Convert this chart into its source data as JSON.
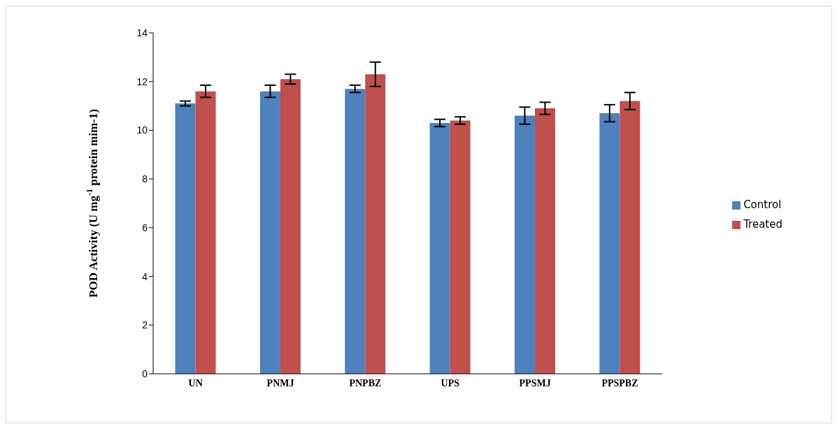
{
  "chart_data": {
    "type": "bar",
    "ylabel": "POD Activity (U mg$^{-1}$ protein mim-1)",
    "categories": [
      "UN",
      "PNMJ",
      "PNPBZ",
      "UPS",
      "PPSMJ",
      "PPSPBZ"
    ],
    "series": [
      {
        "name": "Control",
        "color": "#4f81bd",
        "values": [
          11.1,
          11.6,
          11.7,
          10.3,
          10.6,
          10.7
        ],
        "errors": [
          0.1,
          0.25,
          0.15,
          0.15,
          0.35,
          0.35
        ]
      },
      {
        "name": "Treated",
        "color": "#c0504d",
        "values": [
          11.6,
          12.1,
          12.3,
          10.4,
          10.9,
          11.2
        ],
        "errors": [
          0.25,
          0.2,
          0.5,
          0.15,
          0.25,
          0.35
        ]
      }
    ],
    "ylim": [
      0,
      14
    ],
    "yticks": [
      0,
      2,
      4,
      6,
      8,
      10,
      12,
      14
    ],
    "grid": false,
    "legend": "right"
  }
}
